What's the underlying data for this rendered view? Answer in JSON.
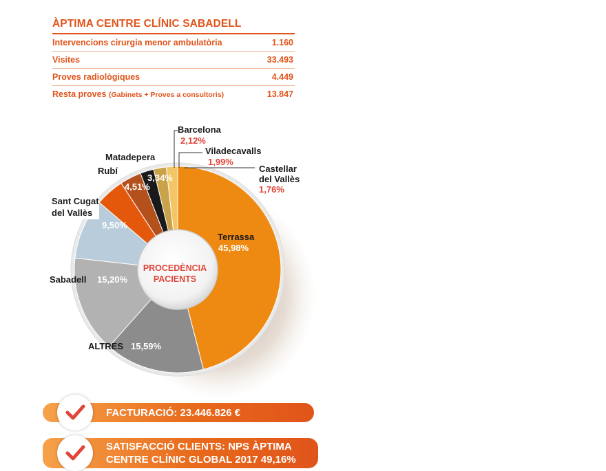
{
  "stats": {
    "title": "ÀPTIMA CENTRE CLÍNIC SABADELL",
    "rows": [
      {
        "label": "Intervencions cirurgia menor ambulatòria",
        "sub": "",
        "value": "1.160"
      },
      {
        "label": "Visites",
        "sub": "",
        "value": "33.493"
      },
      {
        "label": "Proves radiològiques",
        "sub": "",
        "value": "4.449"
      },
      {
        "label": "Resta proves",
        "sub": "(Gabinets + Proves a consultoris)",
        "value": "13.847"
      }
    ]
  },
  "chart_data": {
    "type": "pie",
    "center_label": [
      "PROCEDÈNCIA",
      "PACIENTS"
    ],
    "slices": [
      {
        "name": "Terrassa",
        "value": 45.98,
        "label": "45,98%",
        "color": "#ee8a12"
      },
      {
        "name": "ALTRES",
        "value": 15.59,
        "label": "15,59%",
        "color": "#8c8c8c"
      },
      {
        "name": "Sabadell",
        "value": 15.2,
        "label": "15,20%",
        "color": "#b2b2b2"
      },
      {
        "name": "Sant Cugat del Vallès",
        "value": 9.5,
        "label": "9,50%",
        "color": "#b8ccdb"
      },
      {
        "name": "Rubí",
        "value": 4.51,
        "label": "4,51%",
        "color": "#e4580c"
      },
      {
        "name": "Matadepera",
        "value": 3.34,
        "label": "3,34%",
        "color": "#b3501c"
      },
      {
        "name": "Barcelona",
        "value": 2.12,
        "label": "2,12%",
        "color": "#1a1a1a"
      },
      {
        "name": "Viladecavalls",
        "value": 1.99,
        "label": "1,99%",
        "color": "#c9a24a"
      },
      {
        "name": "Castellar del Vallès",
        "value": 1.76,
        "label": "1,76%",
        "color": "#f3c566"
      }
    ]
  },
  "banners": {
    "billing": "FACTURACIÓ: 23.446.826 €",
    "nps_line1": "SATISFACCIÓ CLIENTS: NPS ÀPTIMA",
    "nps_line2": "CENTRE CLÍNIC GLOBAL 2017 49,16%"
  },
  "colors": {
    "accent": "#e0541a",
    "label_red": "#e0463a",
    "center_text": "#e0463a"
  }
}
